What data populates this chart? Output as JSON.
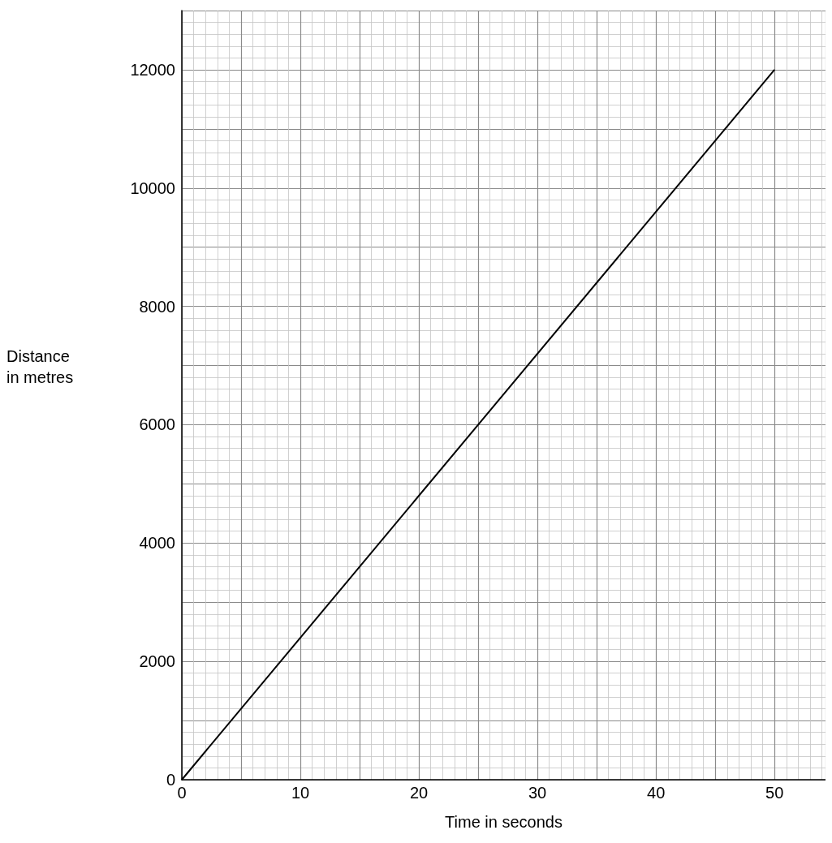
{
  "chart_data": {
    "type": "line",
    "xlabel": "Time in seconds",
    "ylabel": "Distance\nin metres",
    "x": [
      0,
      50
    ],
    "series": [
      {
        "color": "#000000",
        "values": [
          0,
          12000
        ]
      }
    ],
    "xlim": [
      0,
      54.3
    ],
    "ylim": [
      0,
      13000
    ],
    "xticks": [
      0,
      10,
      20,
      30,
      40,
      50
    ],
    "yticks": [
      0,
      2000,
      4000,
      6000,
      8000,
      10000,
      12000
    ],
    "grid": true,
    "marker": "none",
    "line_style": "solid"
  }
}
